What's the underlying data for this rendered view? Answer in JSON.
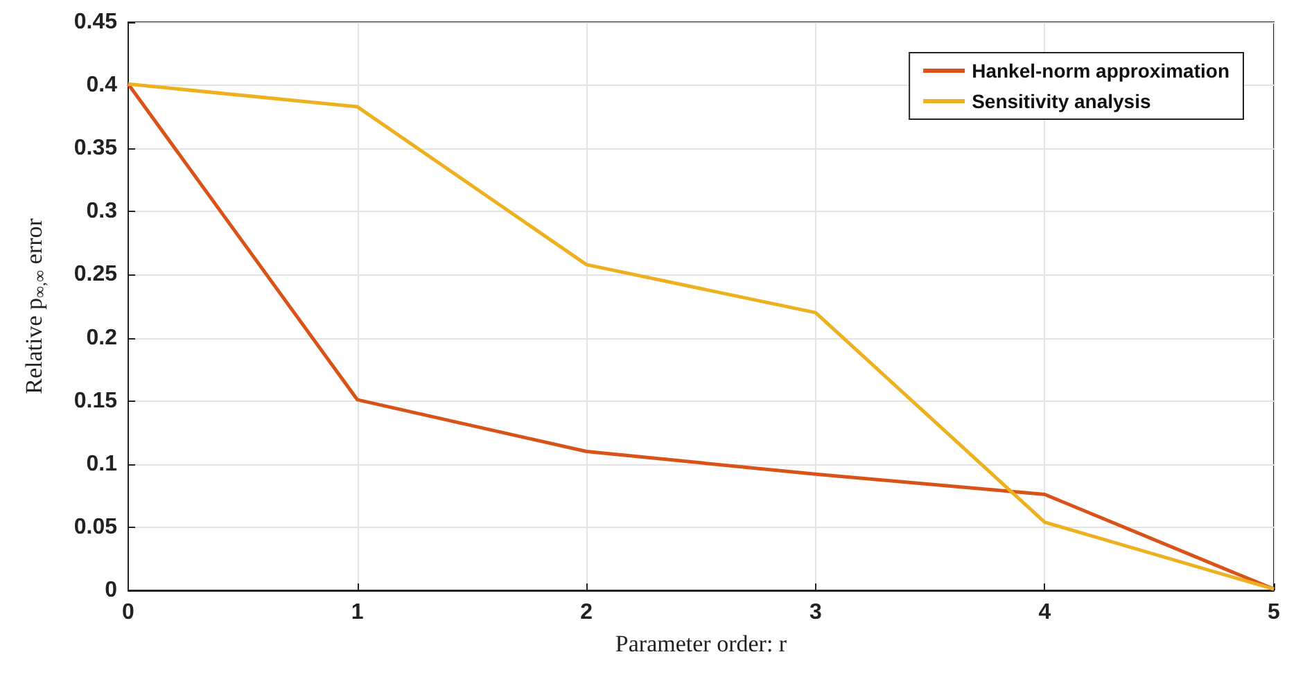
{
  "chart_data": {
    "type": "line",
    "xlabel": "Parameter order: r",
    "ylabel": "Relative p$_{∞,∞}$ error",
    "x": [
      0,
      1,
      2,
      3,
      4,
      5
    ],
    "series": [
      {
        "name": "Hankel-norm approximation",
        "color": "#d95319",
        "values": [
          0.401,
          0.151,
          0.11,
          0.092,
          0.076,
          0.001
        ]
      },
      {
        "name": "Sensitivity analysis",
        "color": "#edb120",
        "values": [
          0.401,
          0.383,
          0.258,
          0.22,
          0.054,
          0.001
        ]
      }
    ],
    "xlim": [
      0,
      5
    ],
    "xticks": [
      0,
      1,
      2,
      3,
      4,
      5
    ],
    "ylim": [
      0,
      0.45
    ],
    "yticks": [
      0,
      0.05,
      0.1,
      0.15,
      0.2,
      0.25,
      0.3,
      0.35,
      0.4,
      0.45
    ],
    "grid": true,
    "legend": "top right",
    "marker": "none",
    "line_style": "solid"
  }
}
